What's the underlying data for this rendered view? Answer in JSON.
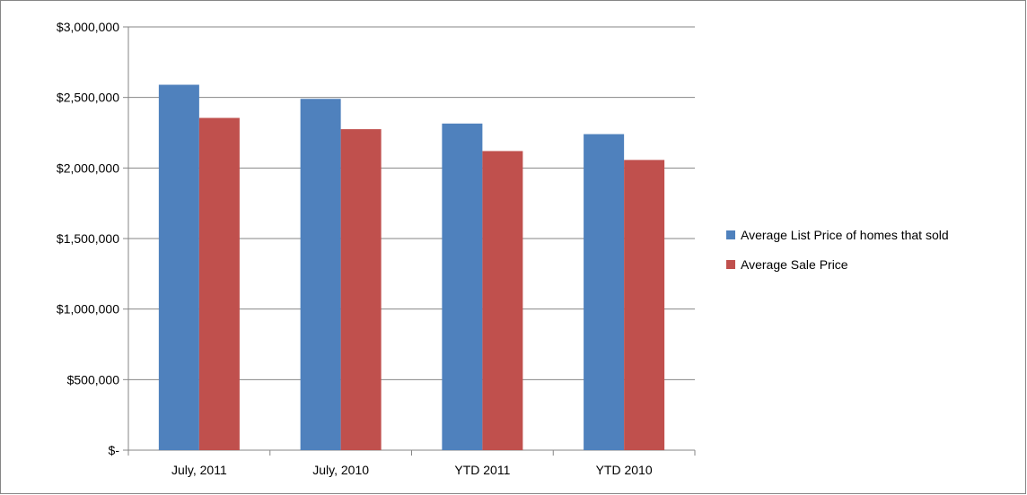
{
  "chart_data": {
    "type": "bar",
    "categories": [
      "July, 2011",
      "July, 2010",
      "YTD 2011",
      "YTD 2010"
    ],
    "series": [
      {
        "name": "Average List Price of homes that sold",
        "color": "#4f81bd",
        "values": [
          2590000,
          2490000,
          2315000,
          2240000
        ]
      },
      {
        "name": "Average Sale Price",
        "color": "#c0504d",
        "values": [
          2355000,
          2275000,
          2120000,
          2057000
        ]
      }
    ],
    "ylim": [
      0,
      3000000
    ],
    "y_ticks": [
      0,
      500000,
      1000000,
      1500000,
      2000000,
      2500000,
      3000000
    ],
    "y_tick_labels": [
      "$-",
      "$500,000",
      "$1,000,000",
      "$1,500,000",
      "$2,000,000",
      "$2,500,000",
      "$3,000,000"
    ],
    "grid": true,
    "legend_position": "right",
    "title": "",
    "xlabel": "",
    "ylabel": ""
  }
}
